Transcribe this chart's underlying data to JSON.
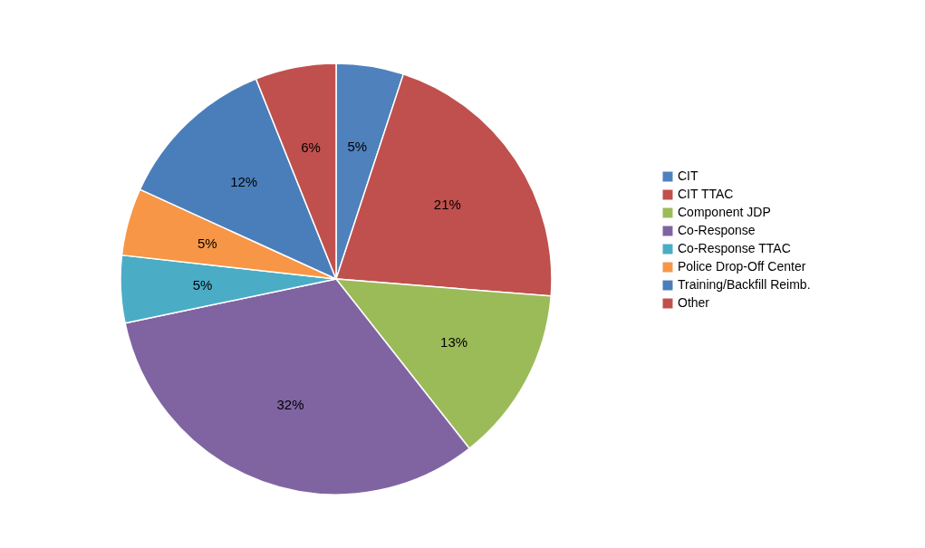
{
  "chart_data": {
    "type": "pie",
    "categories": [
      "CIT",
      "CIT TTAC",
      "Component JDP",
      "Co-Response",
      "Co-Response TTAC",
      "Police Drop-Off Center",
      "Training/Backfill Reimb.",
      "Other"
    ],
    "values": [
      5,
      21,
      13,
      32,
      5,
      5,
      12,
      6
    ],
    "value_labels": [
      "5%",
      "21%",
      "13%",
      "32%",
      "5%",
      "5%",
      "12%",
      "6%"
    ],
    "colors": [
      "#4f81bd",
      "#c0504d",
      "#9bbb59",
      "#8064a2",
      "#4bacc6",
      "#f79646",
      "#4a7ebb",
      "#c0504d"
    ],
    "legend": "right"
  }
}
